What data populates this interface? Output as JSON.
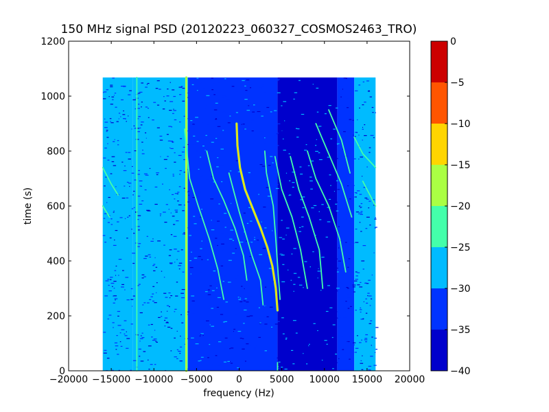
{
  "chart_data": {
    "type": "heatmap",
    "title": "150 MHz signal PSD (20120223_060327_COSMOS2463_TRO)",
    "xlabel": "frequency (Hz)",
    "ylabel": "time (s)",
    "xlim": [
      -20000,
      20000
    ],
    "ylim": [
      0,
      1200
    ],
    "x_ticks": [
      -20000,
      -15000,
      -10000,
      -5000,
      0,
      5000,
      10000,
      15000,
      20000
    ],
    "y_ticks": [
      0,
      200,
      400,
      600,
      800,
      1000,
      1200
    ],
    "x_tick_labels": [
      "−20000",
      "−15000",
      "−10000",
      "−5000",
      "0",
      "5000",
      "10000",
      "15000",
      "20000"
    ],
    "y_tick_labels": [
      "0",
      "200",
      "400",
      "600",
      "800",
      "1000",
      "1200"
    ],
    "data_extent": {
      "freq_range_hz": [
        -16000,
        16000
      ],
      "time_range_s": [
        0,
        1068
      ]
    },
    "colorbar": {
      "levels": [
        -40,
        -35,
        -30,
        -25,
        -20,
        -15,
        -10,
        -5,
        0
      ],
      "tick_labels": [
        "−40",
        "−35",
        "−30",
        "−25",
        "−20",
        "−15",
        "−10",
        "−5",
        "0"
      ],
      "colors": [
        "#0000cc",
        "#0033ff",
        "#00bbff",
        "#44ffaa",
        "#aaff44",
        "#ffd500",
        "#ff5500",
        "#cc0000"
      ]
    },
    "background_regions": [
      {
        "f0": -16000,
        "f1": -12500,
        "level": -27.5
      },
      {
        "f0": -12500,
        "f1": -6000,
        "level": -30
      },
      {
        "f0": -6000,
        "f1": 4500,
        "level": -32.5
      },
      {
        "f0": 4500,
        "f1": 11500,
        "level": -37.5
      },
      {
        "f0": 11500,
        "f1": 13500,
        "level": -32.5
      },
      {
        "f0": 13500,
        "f1": 16000,
        "level": -27.5
      }
    ],
    "series": [
      {
        "level": -22.5,
        "points": [
          [
            -12000,
            0
          ],
          [
            -12000,
            1068
          ]
        ]
      },
      {
        "level": -17.5,
        "points": [
          [
            -6200,
            0
          ],
          [
            -6200,
            1068
          ]
        ]
      },
      {
        "level": -22.5,
        "points": [
          [
            4500,
            0
          ],
          [
            4500,
            30
          ]
        ]
      },
      {
        "level": -22.5,
        "points": [
          [
            -16000,
            740
          ],
          [
            -15000,
            680
          ],
          [
            -14200,
            640
          ]
        ]
      },
      {
        "level": -22.5,
        "points": [
          [
            -16000,
            600
          ],
          [
            -15200,
            560
          ]
        ]
      },
      {
        "level": -22.5,
        "points": [
          [
            13500,
            850
          ],
          [
            14500,
            790
          ],
          [
            16000,
            740
          ]
        ]
      },
      {
        "level": -22.5,
        "points": [
          [
            14500,
            690
          ],
          [
            16000,
            600
          ]
        ]
      },
      {
        "level": -22.5,
        "points": [
          [
            -6400,
            880
          ],
          [
            -5800,
            700
          ],
          [
            -4800,
            600
          ],
          [
            -3500,
            480
          ],
          [
            -2500,
            370
          ],
          [
            -1800,
            260
          ]
        ]
      },
      {
        "level": -22.5,
        "points": [
          [
            -3800,
            800
          ],
          [
            -3000,
            700
          ],
          [
            -1800,
            620
          ],
          [
            -500,
            520
          ],
          [
            500,
            420
          ],
          [
            900,
            330
          ]
        ]
      },
      {
        "level": -22.5,
        "points": [
          [
            -1200,
            720
          ],
          [
            0,
            580
          ],
          [
            1500,
            420
          ],
          [
            2500,
            330
          ],
          [
            2800,
            240
          ]
        ]
      },
      {
        "level": -22.5,
        "points": [
          [
            3000,
            800
          ],
          [
            3200,
            720
          ],
          [
            4000,
            600
          ],
          [
            4300,
            480
          ],
          [
            4600,
            340
          ],
          [
            4800,
            260
          ]
        ]
      },
      {
        "level": -22.5,
        "points": [
          [
            4200,
            780
          ],
          [
            5000,
            660
          ],
          [
            6200,
            560
          ],
          [
            7200,
            440
          ],
          [
            8000,
            300
          ]
        ]
      },
      {
        "level": -22.5,
        "points": [
          [
            6000,
            780
          ],
          [
            7000,
            660
          ],
          [
            8200,
            560
          ],
          [
            9400,
            440
          ],
          [
            9800,
            300
          ]
        ]
      },
      {
        "level": -22.5,
        "points": [
          [
            8000,
            800
          ],
          [
            9000,
            700
          ],
          [
            10500,
            600
          ],
          [
            11800,
            480
          ],
          [
            12500,
            360
          ]
        ]
      },
      {
        "level": -22.5,
        "points": [
          [
            9000,
            900
          ],
          [
            10500,
            790
          ],
          [
            12000,
            680
          ],
          [
            13200,
            560
          ]
        ]
      },
      {
        "level": -22.5,
        "points": [
          [
            10500,
            950
          ],
          [
            12000,
            840
          ],
          [
            13000,
            720
          ]
        ]
      },
      {
        "level": -12.5,
        "points": [
          [
            -300,
            900
          ],
          [
            -200,
            820
          ],
          [
            100,
            740
          ],
          [
            700,
            660
          ],
          [
            1600,
            590
          ],
          [
            2500,
            520
          ],
          [
            3300,
            450
          ],
          [
            3900,
            380
          ],
          [
            4300,
            300
          ],
          [
            4500,
            220
          ]
        ]
      }
    ]
  }
}
